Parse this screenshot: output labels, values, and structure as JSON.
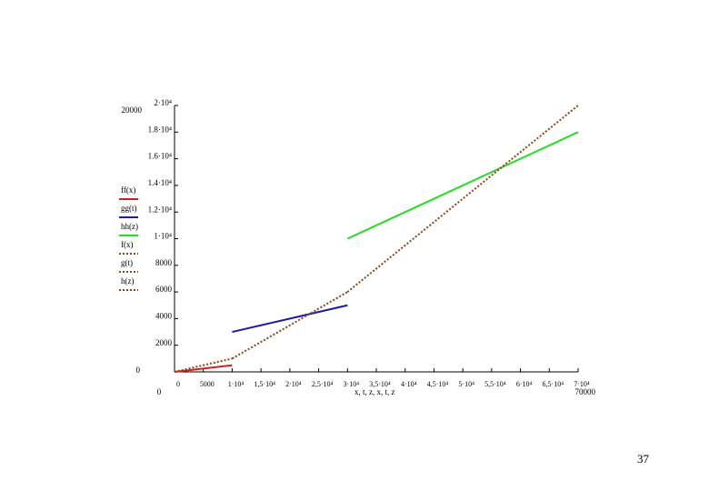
{
  "chart_data": {
    "type": "line",
    "x_label": "x, t, z, x, t, z",
    "xlim": [
      0,
      70000
    ],
    "ylim": [
      0,
      20000
    ],
    "xticks": [
      0,
      {
        "value": 5000,
        "label": "5000"
      },
      {
        "value": 10000,
        "label": "1·10⁴"
      },
      {
        "value": 15000,
        "label": "1,5·10⁴"
      },
      {
        "value": 20000,
        "label": "2·10⁴"
      },
      {
        "value": 25000,
        "label": "2,5·10⁴"
      },
      {
        "value": 30000,
        "label": "3·10⁴"
      },
      {
        "value": 35000,
        "label": "3,5·10⁴"
      },
      {
        "value": 40000,
        "label": "4·10⁴"
      },
      {
        "value": 45000,
        "label": "4,5·10⁴"
      },
      {
        "value": 50000,
        "label": "5·10⁴"
      },
      {
        "value": 55000,
        "label": "5,5·10⁴"
      },
      {
        "value": 60000,
        "label": "6·10⁴"
      },
      {
        "value": 65000,
        "label": "6,5·10⁴"
      },
      {
        "value": 70000,
        "label": "7·10⁴"
      }
    ],
    "yticks": [
      2000,
      4000,
      6000,
      8000,
      {
        "value": 10000,
        "label": "1·10⁴"
      },
      {
        "value": 12000,
        "label": "1.2·10⁴"
      },
      {
        "value": 14000,
        "label": "1.4·10⁴"
      },
      {
        "value": 16000,
        "label": "1.6·10⁴"
      },
      {
        "value": 18000,
        "label": "1.8·10⁴"
      },
      {
        "value": 20000,
        "label": "2·10⁴"
      }
    ],
    "series": [
      {
        "name": "ff(x)",
        "color": "#cc2222",
        "dashed": false,
        "x": [
          0,
          10000
        ],
        "values": [
          0,
          500
        ]
      },
      {
        "name": "gg(t)",
        "color": "#1a1aa6",
        "dashed": false,
        "x": [
          10000,
          30000
        ],
        "values": [
          3000,
          5000
        ]
      },
      {
        "name": "hh(z)",
        "color": "#22dd22",
        "dashed": false,
        "x": [
          30000,
          70000
        ],
        "values": [
          10000,
          18000
        ]
      },
      {
        "name": "f(x)",
        "color": "#8b4513",
        "dashed": true,
        "x": [
          0,
          10000
        ],
        "values": [
          0,
          1000
        ]
      },
      {
        "name": "g(t)",
        "color": "#8b4513",
        "dashed": true,
        "x": [
          10000,
          30000
        ],
        "values": [
          1000,
          6000
        ]
      },
      {
        "name": "h(z)",
        "color": "#8b4513",
        "dashed": true,
        "x": [
          30000,
          70000
        ],
        "values": [
          6000,
          20000
        ]
      }
    ]
  },
  "page_number": "37"
}
